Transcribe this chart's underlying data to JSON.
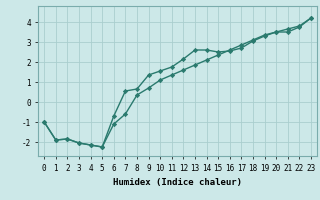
{
  "line1_x": [
    0,
    1,
    2,
    3,
    4,
    5,
    6,
    7,
    8,
    9,
    10,
    11,
    12,
    13,
    14,
    15,
    16,
    17,
    18,
    19,
    20,
    21,
    22,
    23
  ],
  "line1_y": [
    -1.0,
    -1.9,
    -1.85,
    -2.05,
    -2.15,
    -2.25,
    -0.7,
    0.55,
    0.65,
    1.35,
    1.55,
    1.75,
    2.15,
    2.6,
    2.6,
    2.5,
    2.55,
    2.7,
    3.05,
    3.3,
    3.5,
    3.5,
    3.75,
    4.2
  ],
  "line2_x": [
    0,
    1,
    2,
    3,
    4,
    5,
    6,
    7,
    8,
    9,
    10,
    11,
    12,
    13,
    14,
    15,
    16,
    17,
    18,
    19,
    20,
    21,
    22,
    23
  ],
  "line2_y": [
    -1.0,
    -1.9,
    -1.85,
    -2.05,
    -2.15,
    -2.25,
    -1.1,
    -0.6,
    0.35,
    0.7,
    1.1,
    1.35,
    1.6,
    1.85,
    2.1,
    2.35,
    2.6,
    2.85,
    3.1,
    3.35,
    3.5,
    3.65,
    3.8,
    4.2
  ],
  "line_color": "#2a7a6e",
  "marker": "D",
  "marker_size": 2.2,
  "bg_color": "#cce8e8",
  "grid_color": "#aacece",
  "xlabel": "Humidex (Indice chaleur)",
  "xlim": [
    -0.5,
    23.5
  ],
  "ylim": [
    -2.7,
    4.8
  ],
  "yticks": [
    -2,
    -1,
    0,
    1,
    2,
    3,
    4
  ],
  "xticks": [
    0,
    1,
    2,
    3,
    4,
    5,
    6,
    7,
    8,
    9,
    10,
    11,
    12,
    13,
    14,
    15,
    16,
    17,
    18,
    19,
    20,
    21,
    22,
    23
  ],
  "linewidth": 1.0,
  "tick_fontsize": 5.5,
  "xlabel_fontsize": 6.5
}
